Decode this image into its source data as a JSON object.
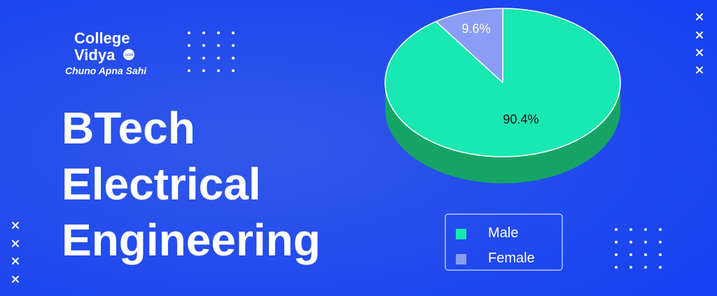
{
  "brand": {
    "name_top": "College",
    "name_bottom": "Vidya",
    "suffix": ".com",
    "tagline": "Chuno Apna Sahi"
  },
  "headline": [
    "BTech",
    "Electrical",
    "Engineering"
  ],
  "chart_data": {
    "type": "pie",
    "series": [
      {
        "name": "Male",
        "color": "#1ae8b2",
        "side_color": "#16a466",
        "values": [
          90.4
        ],
        "value_labels": [
          "90.4%"
        ]
      },
      {
        "name": "Female",
        "color": "#8a9cf6",
        "side_color": "#6e7fd6",
        "values": [
          9.6
        ],
        "value_labels": [
          "9.6%"
        ]
      }
    ],
    "legend": "bottom-right"
  }
}
